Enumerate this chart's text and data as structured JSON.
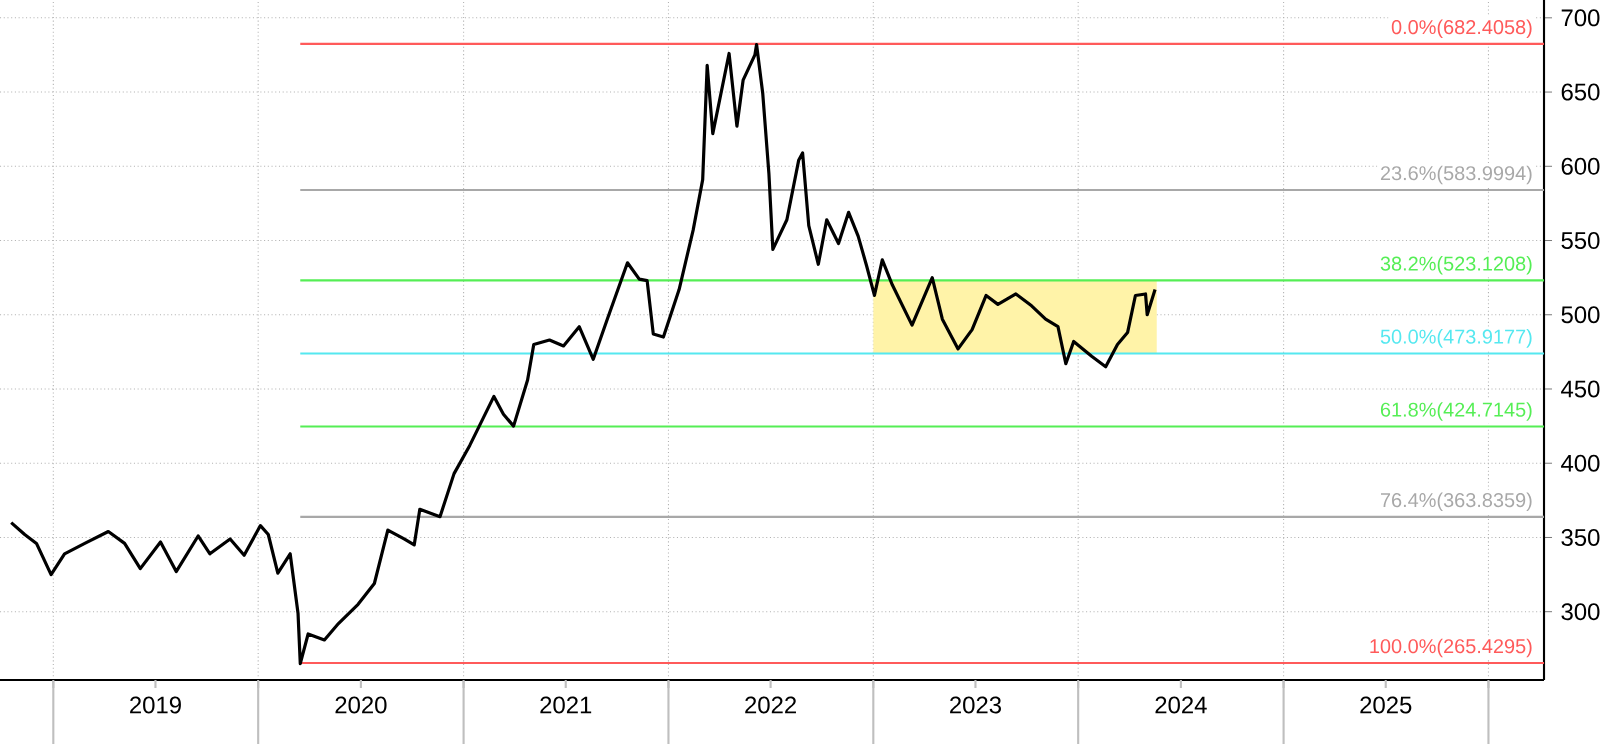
{
  "chart_data": {
    "type": "line",
    "series": [
      {
        "color": "#000000",
        "x": [
          "2018-10-18",
          "2018-11-11",
          "2018-12-02",
          "2018-12-28",
          "2019-01-21",
          "2019-02-26",
          "2019-04-09",
          "2019-05-08",
          "2019-06-05",
          "2019-07-11",
          "2019-08-08",
          "2019-09-16",
          "2019-10-07",
          "2019-11-12",
          "2019-12-07",
          "2020-01-05",
          "2020-01-19",
          "2020-02-05",
          "2020-02-27",
          "2020-03-12",
          "2020-03-16",
          "2020-03-30",
          "2020-04-28",
          "2020-05-23",
          "2020-06-27",
          "2020-07-26",
          "2020-08-19",
          "2020-09-17",
          "2020-10-05",
          "2020-10-15",
          "2020-11-20",
          "2020-12-15",
          "2021-01-12",
          "2021-02-24",
          "2021-03-13",
          "2021-03-31",
          "2021-04-25",
          "2021-05-06",
          "2021-06-03",
          "2021-06-28",
          "2021-07-26",
          "2021-08-20",
          "2021-09-14",
          "2021-10-20",
          "2021-11-10",
          "2021-11-24",
          "2021-12-05",
          "2021-12-23",
          "2022-01-20",
          "2022-02-14",
          "2022-03-03",
          "2022-03-11",
          "2022-03-21",
          "2022-04-19",
          "2022-05-03",
          "2022-05-14",
          "2022-06-04",
          "2022-06-07",
          "2022-06-18",
          "2022-06-29",
          "2022-07-06",
          "2022-07-31",
          "2022-08-21",
          "2022-08-28",
          "2022-09-08",
          "2022-09-25",
          "2022-10-10",
          "2022-10-31",
          "2022-11-18",
          "2022-12-05",
          "2022-12-20",
          "2023-01-03",
          "2023-01-17",
          "2023-02-04",
          "2023-03-11",
          "2023-04-16",
          "2023-05-04",
          "2023-06-01",
          "2023-06-26",
          "2023-07-21",
          "2023-08-11",
          "2023-09-12",
          "2023-10-10",
          "2023-11-04",
          "2023-11-26",
          "2023-12-10",
          "2023-12-24",
          "2024-01-25",
          "2024-02-19",
          "2024-03-11",
          "2024-03-29",
          "2024-04-12",
          "2024-04-30",
          "2024-05-03",
          "2024-05-17"
        ],
        "values": [
          360,
          352,
          346,
          325,
          339,
          346,
          354,
          346,
          329,
          347,
          327,
          351,
          339,
          349,
          338,
          358,
          352,
          326,
          339,
          299,
          265,
          285,
          281,
          292,
          305,
          319,
          355,
          349,
          345,
          369,
          364,
          393,
          412,
          445,
          433,
          425,
          456,
          480,
          483,
          479,
          492,
          470,
          497,
          535,
          524,
          523,
          487,
          485,
          517,
          557,
          591,
          668,
          622,
          676,
          627,
          658,
          675,
          682,
          649,
          595,
          544,
          564,
          604,
          609,
          560,
          534,
          564,
          548,
          569,
          553,
          533,
          513,
          537,
          520,
          493,
          525,
          497,
          477,
          490,
          513,
          507,
          514,
          506,
          497,
          492,
          467,
          482,
          472,
          465,
          480,
          488,
          513,
          514,
          500,
          517
        ]
      }
    ],
    "xlim": [
      "2018-09-28",
      "2026-04-10"
    ],
    "xticks": [
      {
        "value": "2019-01-01",
        "label": null
      },
      {
        "value": "2019-07-02",
        "label": "2019"
      },
      {
        "value": "2020-01-01",
        "label": null
      },
      {
        "value": "2020-07-02",
        "label": "2020"
      },
      {
        "value": "2021-01-01",
        "label": null
      },
      {
        "value": "2021-07-02",
        "label": "2021"
      },
      {
        "value": "2022-01-01",
        "label": null
      },
      {
        "value": "2022-07-02",
        "label": "2022"
      },
      {
        "value": "2023-01-01",
        "label": null
      },
      {
        "value": "2023-07-02",
        "label": "2023"
      },
      {
        "value": "2024-01-01",
        "label": null
      },
      {
        "value": "2024-07-02",
        "label": "2024"
      },
      {
        "value": "2025-01-01",
        "label": null
      },
      {
        "value": "2025-07-02",
        "label": "2025"
      },
      {
        "value": "2026-01-01",
        "label": null
      }
    ],
    "ylim": [
      254,
      712
    ],
    "yticks": [
      300,
      350,
      400,
      450,
      500,
      550,
      600,
      650,
      700
    ],
    "grid": true,
    "ref_lines": [
      {
        "axis": "y",
        "value": 682.4058,
        "label": "0.0%(682.4058)",
        "color": "#ff5a5a"
      },
      {
        "axis": "y",
        "value": 583.9994,
        "label": "23.6%(583.9994)",
        "color": "#a8a8a8"
      },
      {
        "axis": "y",
        "value": 523.1208,
        "label": "38.2%(523.1208)",
        "color": "#55ee55"
      },
      {
        "axis": "y",
        "value": 473.9177,
        "label": "50.0%(473.9177)",
        "color": "#55e8f0"
      },
      {
        "axis": "y",
        "value": 424.7145,
        "label": "61.8%(424.7145)",
        "color": "#55ee55"
      },
      {
        "axis": "y",
        "value": 363.8359,
        "label": "76.4%(363.8359)",
        "color": "#a8a8a8"
      },
      {
        "axis": "y",
        "value": 265.4295,
        "label": "100.0%(265.4295)",
        "color": "#ff5a5a"
      }
    ],
    "bands": [
      {
        "axis": "x",
        "from": "2023-01-01",
        "to": "2024-05-20",
        "color": "#fff3a8"
      }
    ]
  }
}
